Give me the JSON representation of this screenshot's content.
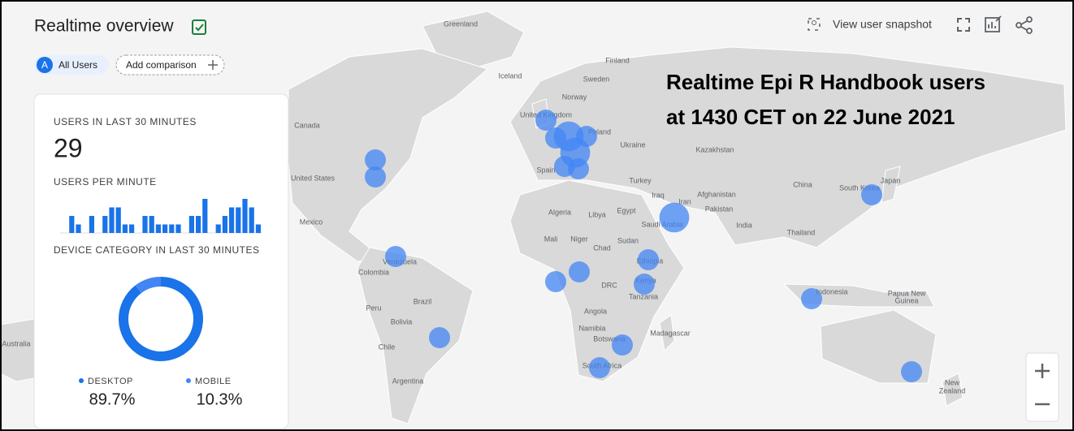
{
  "header": {
    "title": "Realtime overview",
    "segment_badge": "A",
    "segment": "All Users",
    "add_comparison": "Add comparison",
    "snapshot": "View user snapshot"
  },
  "annotation": [
    "Realtime Epi R Handbook users",
    "at 1430 CET on 22 June 2021"
  ],
  "card": {
    "users_label": "USERS IN LAST 30 MINUTES",
    "users": 29,
    "per_minute_label": "USERS PER MINUTE",
    "per_minute": {
      "type": "bar",
      "values": [
        0,
        2,
        1,
        0,
        2,
        0,
        2,
        3,
        3,
        1,
        1,
        0,
        2,
        2,
        1,
        1,
        1,
        1,
        0,
        2,
        2,
        4,
        0,
        1,
        2,
        3,
        3,
        4,
        3,
        1
      ],
      "color": "#1a73e8"
    },
    "device_label": "DEVICE CATEGORY IN LAST 30 MINUTES",
    "device": {
      "type": "pie",
      "categories": [
        "DESKTOP",
        "MOBILE"
      ],
      "values": [
        89.7,
        10.3
      ],
      "value_labels": [
        "89.7%",
        "10.3%"
      ],
      "colors": [
        "#1a73e8",
        "#4285f4"
      ]
    }
  },
  "map": {
    "labels": [
      "Greenland",
      "Finland",
      "Iceland",
      "Sweden",
      "Norway",
      "United Kingdom",
      "Poland",
      "Ukraine",
      "Kazakhstan",
      "Canada",
      "United States",
      "Turkey",
      "Iraq",
      "Iran",
      "Afghanistan",
      "Pakistan",
      "China",
      "Japan",
      "South Korea",
      "India",
      "Mexico",
      "Algeria",
      "Libya",
      "Egypt",
      "Saudi Arabia",
      "Thailand",
      "Mali",
      "Niger",
      "Chad",
      "Sudan",
      "Ethiopia",
      "Venezuela",
      "Colombia",
      "DRC",
      "Kenya",
      "Tanzania",
      "Indonesia",
      "Papua New",
      "Guinea",
      "Peru",
      "Brazil",
      "Angola",
      "Bolivia",
      "Namibia",
      "Madagascar",
      "Botswana",
      "Chile",
      "South Africa",
      "Argentina",
      "Australia",
      "New",
      "Zealand",
      "Spain"
    ],
    "points": {
      "values": [
        1,
        1,
        1,
        1,
        1,
        1,
        1,
        1,
        1,
        2,
        2,
        1,
        1,
        2,
        1,
        1,
        1,
        1,
        1,
        1,
        1
      ],
      "color": "#4285f4"
    }
  }
}
